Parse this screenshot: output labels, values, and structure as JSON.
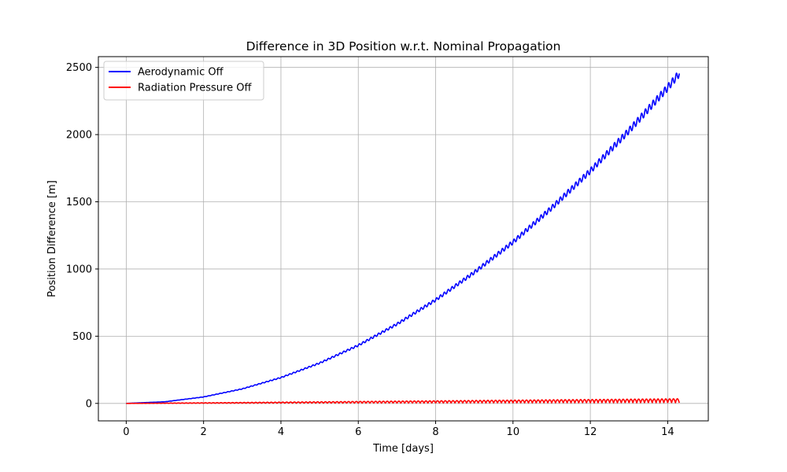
{
  "chart_data": {
    "type": "line",
    "title": "Difference in 3D Position w.r.t. Nominal Propagation",
    "xlabel": "Time [days]",
    "ylabel": "Position Difference [m]",
    "xlim": [
      -0.72,
      15.05
    ],
    "ylim": [
      -130,
      2580
    ],
    "xticks": [
      0,
      2,
      4,
      6,
      8,
      10,
      12,
      14
    ],
    "yticks": [
      0,
      500,
      1000,
      1500,
      2000,
      2500
    ],
    "grid": true,
    "legend_position": "top-left",
    "series": [
      {
        "name": "Aerodynamic Off",
        "color": "#0000ff",
        "trend": "quadratic",
        "x": [
          0,
          1,
          2,
          3,
          4,
          5,
          6,
          7,
          8,
          9,
          10,
          11,
          12,
          13,
          14,
          14.3
        ],
        "y": [
          0,
          12,
          48,
          108,
          192,
          300,
          432,
          590,
          770,
          975,
          1200,
          1455,
          1730,
          2030,
          2350,
          2455
        ],
        "oscillation": {
          "period_days": 0.1,
          "amplitude_at_end": 28
        }
      },
      {
        "name": "Radiation Pressure Off",
        "color": "#ff0000",
        "trend": "oscillating",
        "x": [
          0,
          2,
          4,
          6,
          8,
          10,
          12,
          14,
          14.3
        ],
        "y": [
          0,
          3,
          7,
          12,
          17,
          22,
          26,
          30,
          30
        ],
        "oscillation": {
          "period_days": 0.1,
          "amplitude_at_end": 30
        }
      }
    ]
  }
}
